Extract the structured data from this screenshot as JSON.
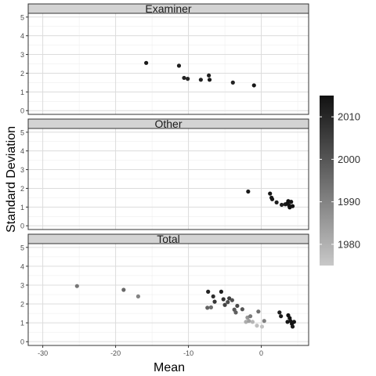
{
  "chart_data": {
    "type": "scatter",
    "xlabel": "Mean",
    "ylabel": "Standard Deviation",
    "xlim": [
      -32,
      6.5
    ],
    "ylim": [
      -0.2,
      5.2
    ],
    "x_ticks": [
      -30,
      -20,
      -10,
      0
    ],
    "y_ticks": [
      0,
      1,
      2,
      3,
      4,
      5
    ],
    "grid": true,
    "legend": {
      "position": "right",
      "type": "colorbar",
      "ticks": [
        1980,
        1990,
        2000,
        2010
      ],
      "range": [
        1975,
        2015
      ],
      "color_low": "#c8c8c8",
      "color_high": "#111111"
    },
    "panels": [
      {
        "title": "Examiner",
        "points": [
          {
            "x": -15.8,
            "y": 2.55,
            "year": 2013
          },
          {
            "x": -11.3,
            "y": 2.4,
            "year": 2012
          },
          {
            "x": -10.6,
            "y": 1.75,
            "year": 2011
          },
          {
            "x": -10.1,
            "y": 1.7,
            "year": 2010
          },
          {
            "x": -8.3,
            "y": 1.65,
            "year": 2011
          },
          {
            "x": -7.2,
            "y": 1.88,
            "year": 2012
          },
          {
            "x": -7.1,
            "y": 1.65,
            "year": 2013
          },
          {
            "x": -3.9,
            "y": 1.5,
            "year": 2011
          },
          {
            "x": -1.0,
            "y": 1.35,
            "year": 2014
          }
        ]
      },
      {
        "title": "Other",
        "points": [
          {
            "x": -1.8,
            "y": 1.83,
            "year": 2013
          },
          {
            "x": 1.2,
            "y": 1.72,
            "year": 2014
          },
          {
            "x": 1.4,
            "y": 1.5,
            "year": 2013
          },
          {
            "x": 1.5,
            "y": 1.42,
            "year": 2014
          },
          {
            "x": 2.1,
            "y": 1.25,
            "year": 2012
          },
          {
            "x": 2.8,
            "y": 1.12,
            "year": 2012
          },
          {
            "x": 3.3,
            "y": 1.15,
            "year": 2013
          },
          {
            "x": 3.6,
            "y": 1.2,
            "year": 2015
          },
          {
            "x": 3.7,
            "y": 1.32,
            "year": 2015
          },
          {
            "x": 3.8,
            "y": 1.1,
            "year": 2014
          },
          {
            "x": 3.9,
            "y": 0.98,
            "year": 2015
          },
          {
            "x": 4.1,
            "y": 1.28,
            "year": 2014
          },
          {
            "x": 4.3,
            "y": 1.05,
            "year": 2015
          }
        ]
      },
      {
        "title": "Total",
        "points": [
          {
            "x": -25.3,
            "y": 2.95,
            "year": 1993
          },
          {
            "x": -18.9,
            "y": 2.75,
            "year": 1996
          },
          {
            "x": -16.9,
            "y": 2.4,
            "year": 1990
          },
          {
            "x": -7.3,
            "y": 2.65,
            "year": 2011
          },
          {
            "x": -7.4,
            "y": 1.8,
            "year": 1997
          },
          {
            "x": -6.9,
            "y": 1.82,
            "year": 1995
          },
          {
            "x": -6.6,
            "y": 2.4,
            "year": 2009
          },
          {
            "x": -6.4,
            "y": 2.12,
            "year": 2007
          },
          {
            "x": -5.5,
            "y": 2.65,
            "year": 2012
          },
          {
            "x": -5.2,
            "y": 2.25,
            "year": 2008
          },
          {
            "x": -5.0,
            "y": 1.95,
            "year": 2004
          },
          {
            "x": -4.6,
            "y": 2.1,
            "year": 2002
          },
          {
            "x": -4.4,
            "y": 2.3,
            "year": 2005
          },
          {
            "x": -4.0,
            "y": 2.2,
            "year": 2001
          },
          {
            "x": -3.7,
            "y": 1.7,
            "year": 1999
          },
          {
            "x": -3.5,
            "y": 1.55,
            "year": 1998
          },
          {
            "x": -3.3,
            "y": 1.9,
            "year": 2003
          },
          {
            "x": -2.6,
            "y": 1.72,
            "year": 2000
          },
          {
            "x": -2.1,
            "y": 1.05,
            "year": 1981
          },
          {
            "x": -1.9,
            "y": 1.28,
            "year": 1986
          },
          {
            "x": -1.7,
            "y": 1.1,
            "year": 1984
          },
          {
            "x": -1.5,
            "y": 1.35,
            "year": 1992
          },
          {
            "x": -1.2,
            "y": 1.05,
            "year": 1979
          },
          {
            "x": -0.6,
            "y": 0.85,
            "year": 1977
          },
          {
            "x": -0.4,
            "y": 1.6,
            "year": 1994
          },
          {
            "x": 0.1,
            "y": 0.8,
            "year": 1976
          },
          {
            "x": 0.4,
            "y": 1.1,
            "year": 1991
          },
          {
            "x": 2.5,
            "y": 1.55,
            "year": 2012
          },
          {
            "x": 2.7,
            "y": 1.35,
            "year": 2013
          },
          {
            "x": 3.6,
            "y": 1.05,
            "year": 2014
          },
          {
            "x": 3.7,
            "y": 1.4,
            "year": 2015
          },
          {
            "x": 3.9,
            "y": 1.25,
            "year": 2015
          },
          {
            "x": 4.0,
            "y": 1.1,
            "year": 2014
          },
          {
            "x": 4.2,
            "y": 0.95,
            "year": 2015
          },
          {
            "x": 4.3,
            "y": 0.8,
            "year": 2013
          },
          {
            "x": 4.5,
            "y": 1.05,
            "year": 2014
          }
        ]
      }
    ]
  }
}
